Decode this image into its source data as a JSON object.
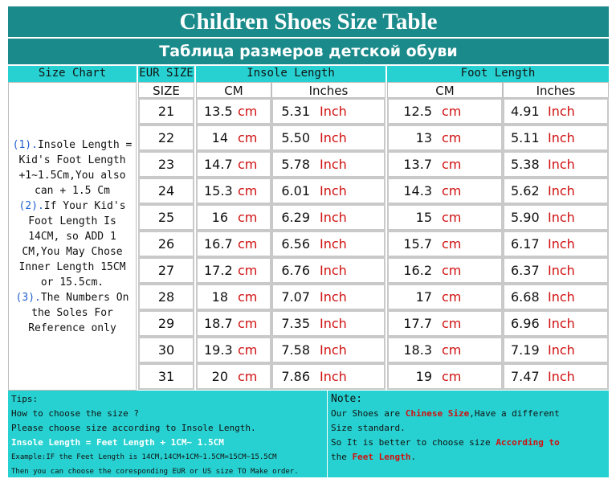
{
  "title_en": "Children Shoes Size Table",
  "title_ru": "Таблица размеров детской обуви",
  "header": {
    "size_chart": "Size Chart",
    "eur_size": "EUR SIZE",
    "insole_length": "Insole Length",
    "foot_length": "Foot Length",
    "size": "SIZE",
    "cm": "CM",
    "inches": "Inches"
  },
  "units": {
    "cm": "cm",
    "inch": "Inch"
  },
  "notes_left": {
    "n1": "(1).",
    "t1": "Insole Length = Kid's Foot Length +1~1.5Cm,You also can + 1.5 Cm",
    "n2": "(2).",
    "t2": "If Your Kid's Foot Length Is 14CM,  so ADD 1 CM,You May Chose Inner Length 15CM or 15.5cm.",
    "n3": "(3).",
    "t3": "The Numbers On the Soles For Reference only"
  },
  "rows": [
    {
      "size": "21",
      "insole_cm": "13.5",
      "insole_in": "5.31",
      "foot_cm": "12.5",
      "foot_in": "4.91"
    },
    {
      "size": "22",
      "insole_cm": "14",
      "insole_in": "5.50",
      "foot_cm": "13",
      "foot_in": "5.11"
    },
    {
      "size": "23",
      "insole_cm": "14.7",
      "insole_in": "5.78",
      "foot_cm": "13.7",
      "foot_in": "5.38"
    },
    {
      "size": "24",
      "insole_cm": "15.3",
      "insole_in": "6.01",
      "foot_cm": "14.3",
      "foot_in": "5.62"
    },
    {
      "size": "25",
      "insole_cm": "16",
      "insole_in": "6.29",
      "foot_cm": "15",
      "foot_in": "5.90"
    },
    {
      "size": "26",
      "insole_cm": "16.7",
      "insole_in": "6.56",
      "foot_cm": "15.7",
      "foot_in": "6.17"
    },
    {
      "size": "27",
      "insole_cm": "17.2",
      "insole_in": "6.76",
      "foot_cm": "16.2",
      "foot_in": "6.37"
    },
    {
      "size": "28",
      "insole_cm": "18",
      "insole_in": "7.07",
      "foot_cm": "17",
      "foot_in": "6.68"
    },
    {
      "size": "29",
      "insole_cm": "18.7",
      "insole_in": "7.35",
      "foot_cm": "17.7",
      "foot_in": "6.96"
    },
    {
      "size": "30",
      "insole_cm": "19.3",
      "insole_in": "7.58",
      "foot_cm": "18.3",
      "foot_in": "7.19"
    },
    {
      "size": "31",
      "insole_cm": "20",
      "insole_in": "7.86",
      "foot_cm": "19",
      "foot_in": "7.47"
    }
  ],
  "tips": {
    "label": "Tips:",
    "line1": "How to choose the size ?",
    "line2": "Please choose size according to Insole Length.",
    "line3": "Insole Length = Feet Length + 1CM~ 1.5CM",
    "line4": "Example:IF the Feet Length is 14CM,14CM+1CM~1.5CM=15CM~15.5CM",
    "line5": "Then you can choose the coresponding EUR or US size TO Make order."
  },
  "note": {
    "label": "Note:",
    "a1": "Our Shoes are ",
    "a2": "Chinese Size",
    "a3": ",Have a different",
    "b1": "Size standard.",
    "c1": "So It is better to choose size ",
    "c2": "According to",
    "d1": "the ",
    "d2": "Feet Length",
    "d3": "."
  },
  "colors": {
    "title_bg": "#1a8a8a",
    "header_bg": "#27d1d1",
    "unit_red": "#d01010",
    "note_blue": "#2060d0"
  }
}
